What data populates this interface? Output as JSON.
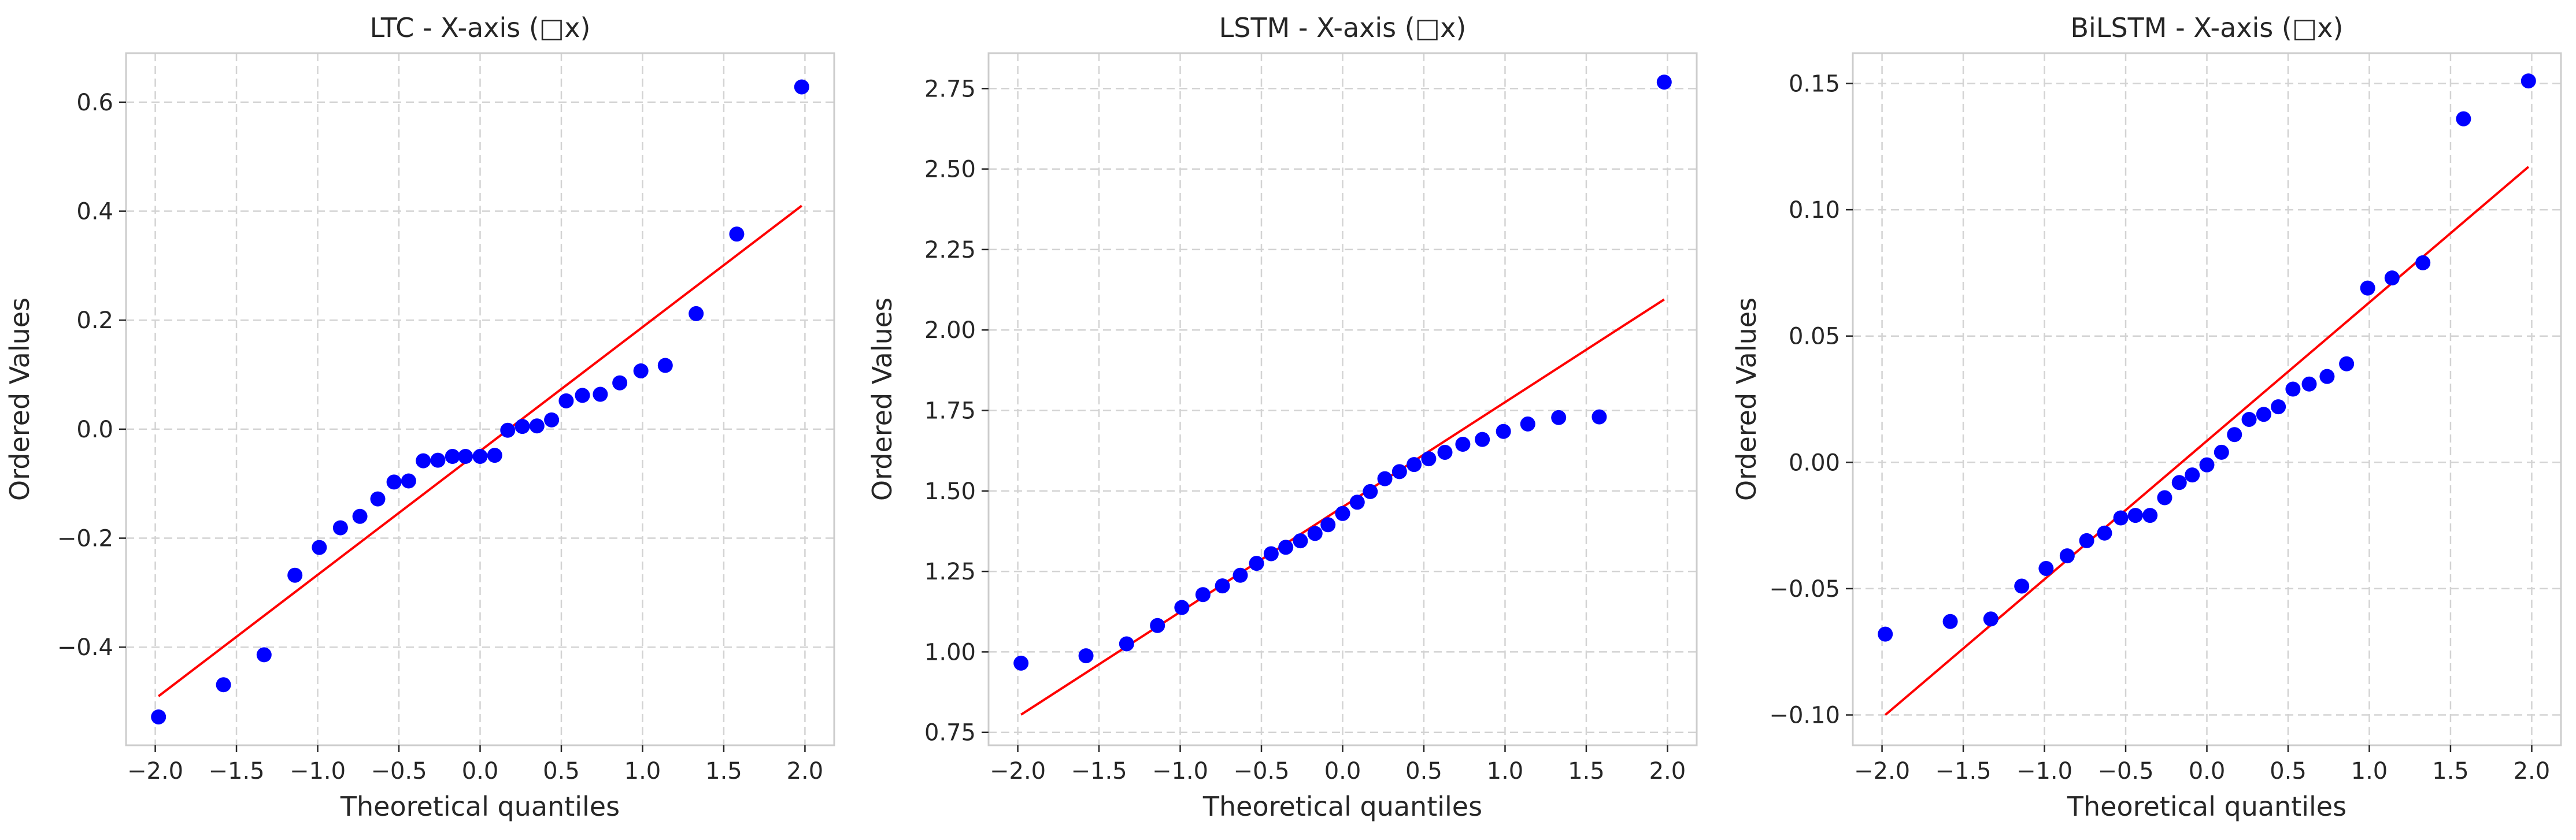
{
  "chart_data": [
    {
      "type": "scatter",
      "title": "LTC - X-axis (□x)",
      "xlabel": "Theoretical quantiles",
      "ylabel": "Ordered Values",
      "xlim": [
        -2.18,
        2.18
      ],
      "ylim": [
        -0.58,
        0.69
      ],
      "xticks": [
        -2.0,
        -1.5,
        -1.0,
        -0.5,
        0.0,
        0.5,
        1.0,
        1.5,
        2.0
      ],
      "yticks": [
        -0.4,
        -0.2,
        0.0,
        0.2,
        0.4,
        0.6
      ],
      "xtick_labels": [
        "−2.0",
        "−1.5",
        "−1.0",
        "−0.5",
        "0.0",
        "0.5",
        "1.0",
        "1.5",
        "2.0"
      ],
      "ytick_labels": [
        "−0.4",
        "−0.2",
        "0.0",
        "0.2",
        "0.4",
        "0.6"
      ],
      "grid": true,
      "series": [
        {
          "x": [
            -1.98,
            -1.58,
            -1.33,
            -1.14,
            -0.99,
            -0.86,
            -0.74,
            -0.63,
            -0.53,
            -0.44,
            -0.35,
            -0.26,
            -0.17,
            -0.09,
            0.0,
            0.09,
            0.17,
            0.26,
            0.35,
            0.44,
            0.53,
            0.63,
            0.74,
            0.86,
            0.99,
            1.14,
            1.33,
            1.58,
            1.98
          ],
          "y": [
            -0.528,
            -0.469,
            -0.414,
            -0.268,
            -0.217,
            -0.181,
            -0.16,
            -0.128,
            -0.097,
            -0.095,
            -0.058,
            -0.057,
            -0.05,
            -0.05,
            -0.05,
            -0.048,
            -0.002,
            0.005,
            0.006,
            0.017,
            0.052,
            0.062,
            0.064,
            0.085,
            0.107,
            0.117,
            0.212,
            0.358,
            0.628
          ],
          "color": "#0000ff"
        }
      ],
      "fit_line": {
        "x": [
          -1.98,
          1.98
        ],
        "y": [
          -0.49,
          0.41
        ],
        "color": "#ff0000"
      }
    },
    {
      "type": "scatter",
      "title": "LSTM - X-axis (□x)",
      "xlabel": "Theoretical quantiles",
      "ylabel": "Ordered Values",
      "xlim": [
        -2.18,
        2.18
      ],
      "ylim": [
        0.71,
        2.86
      ],
      "xticks": [
        -2.0,
        -1.5,
        -1.0,
        -0.5,
        0.0,
        0.5,
        1.0,
        1.5,
        2.0
      ],
      "yticks": [
        0.75,
        1.0,
        1.25,
        1.5,
        1.75,
        2.0,
        2.25,
        2.5,
        2.75
      ],
      "xtick_labels": [
        "−2.0",
        "−1.5",
        "−1.0",
        "−0.5",
        "0.0",
        "0.5",
        "1.0",
        "1.5",
        "2.0"
      ],
      "ytick_labels": [
        "0.75",
        "1.00",
        "1.25",
        "1.50",
        "1.75",
        "2.00",
        "2.25",
        "2.50",
        "2.75"
      ],
      "grid": true,
      "series": [
        {
          "x": [
            -1.98,
            -1.58,
            -1.33,
            -1.14,
            -0.99,
            -0.86,
            -0.74,
            -0.63,
            -0.53,
            -0.44,
            -0.35,
            -0.26,
            -0.17,
            -0.09,
            0.0,
            0.09,
            0.17,
            0.26,
            0.35,
            0.44,
            0.53,
            0.63,
            0.74,
            0.86,
            0.99,
            1.14,
            1.33,
            1.58,
            1.98
          ],
          "y": [
            0.965,
            0.988,
            1.025,
            1.082,
            1.138,
            1.178,
            1.205,
            1.238,
            1.275,
            1.305,
            1.325,
            1.345,
            1.368,
            1.395,
            1.43,
            1.465,
            1.498,
            1.538,
            1.56,
            1.582,
            1.6,
            1.62,
            1.645,
            1.66,
            1.685,
            1.708,
            1.728,
            1.73,
            2.77
          ],
          "color": "#0000ff"
        }
      ],
      "fit_line": {
        "x": [
          -1.98,
          1.98
        ],
        "y": [
          0.805,
          2.095
        ],
        "color": "#ff0000"
      }
    },
    {
      "type": "scatter",
      "title": "BiLSTM - X-axis (□x)",
      "xlabel": "Theoretical quantiles",
      "ylabel": "Ordered Values",
      "xlim": [
        -2.18,
        2.18
      ],
      "ylim": [
        -0.112,
        0.162
      ],
      "xticks": [
        -2.0,
        -1.5,
        -1.0,
        -0.5,
        0.0,
        0.5,
        1.0,
        1.5,
        2.0
      ],
      "yticks": [
        -0.1,
        -0.05,
        0.0,
        0.05,
        0.1,
        0.15
      ],
      "xtick_labels": [
        "−2.0",
        "−1.5",
        "−1.0",
        "−0.5",
        "0.0",
        "0.5",
        "1.0",
        "1.5",
        "2.0"
      ],
      "ytick_labels": [
        "−0.10",
        "−0.05",
        "0.00",
        "0.05",
        "0.10",
        "0.15"
      ],
      "grid": true,
      "series": [
        {
          "x": [
            -1.98,
            -1.58,
            -1.33,
            -1.14,
            -0.99,
            -0.86,
            -0.74,
            -0.63,
            -0.53,
            -0.44,
            -0.35,
            -0.26,
            -0.17,
            -0.09,
            0.0,
            0.09,
            0.17,
            0.26,
            0.35,
            0.44,
            0.53,
            0.63,
            0.74,
            0.86,
            0.99,
            1.14,
            1.33,
            1.58,
            1.98
          ],
          "y": [
            -0.068,
            -0.063,
            -0.062,
            -0.049,
            -0.042,
            -0.037,
            -0.031,
            -0.028,
            -0.022,
            -0.021,
            -0.021,
            -0.014,
            -0.008,
            -0.005,
            -0.001,
            0.004,
            0.011,
            0.017,
            0.019,
            0.022,
            0.029,
            0.031,
            0.034,
            0.039,
            0.069,
            0.073,
            0.079,
            0.136,
            0.151
          ],
          "color": "#0000ff"
        }
      ],
      "fit_line": {
        "x": [
          -1.98,
          1.98
        ],
        "y": [
          -0.1,
          0.117
        ],
        "color": "#ff0000"
      }
    }
  ]
}
